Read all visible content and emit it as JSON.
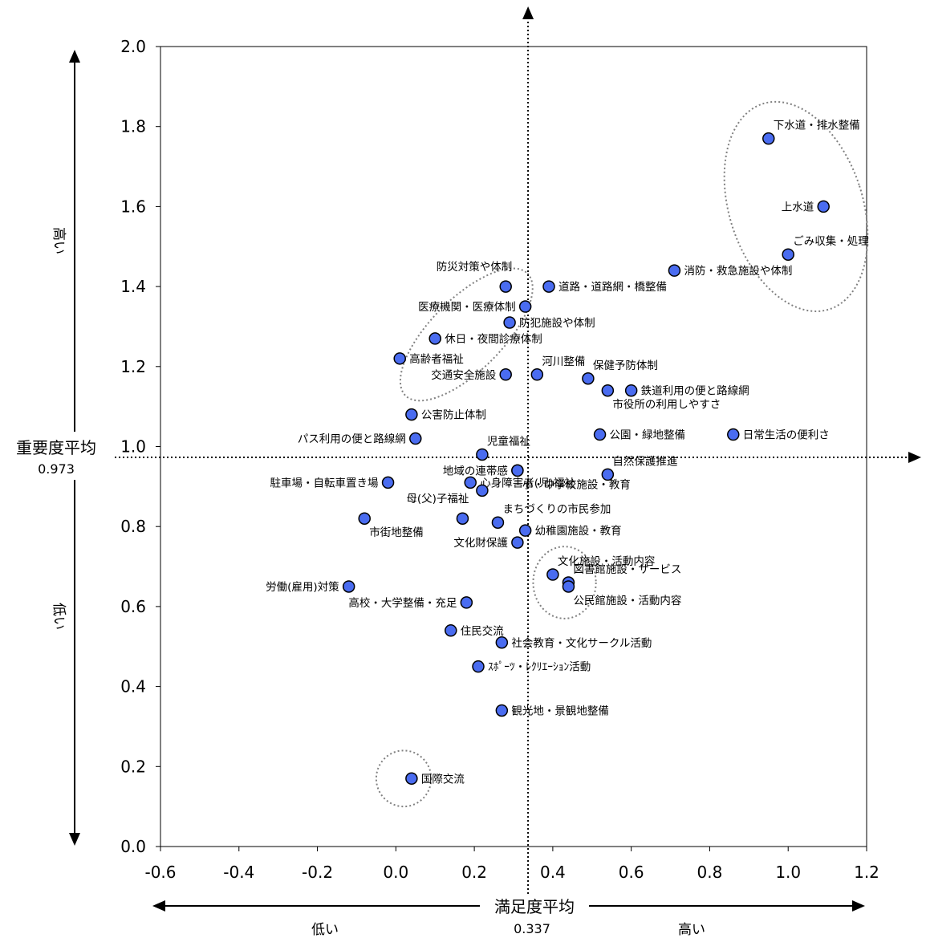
{
  "chart_data": {
    "type": "scatter",
    "xlim": [
      -0.6,
      1.2
    ],
    "ylim": [
      0.0,
      2.0
    ],
    "x_ticks": [
      "-0.6",
      "-0.4",
      "-0.2",
      "0.0",
      "0.2",
      "0.4",
      "0.6",
      "0.8",
      "1.0",
      "1.2"
    ],
    "y_ticks": [
      "0.0",
      "0.2",
      "0.4",
      "0.6",
      "0.8",
      "1.0",
      "1.2",
      "1.4",
      "1.6",
      "1.8",
      "2.0"
    ],
    "x_axis": {
      "title": "満足度平均",
      "mean": 0.337,
      "mean_label": "0.337",
      "low_label": "低い",
      "high_label": "高い"
    },
    "y_axis": {
      "title": "重要度平均",
      "mean": 0.973,
      "mean_label": "0.973",
      "low_label": "低い",
      "high_label": "高い"
    },
    "point_color": "#4a6cf0",
    "points": [
      {
        "label": "下水道・排水整備",
        "x": 0.95,
        "y": 1.77,
        "pos": "above-right"
      },
      {
        "label": "上水道",
        "x": 1.09,
        "y": 1.6,
        "pos": "left"
      },
      {
        "label": "ごみ収集・処理",
        "x": 1.0,
        "y": 1.48,
        "pos": "above-right"
      },
      {
        "label": "消防・救急施設や体制",
        "x": 0.71,
        "y": 1.44,
        "pos": "right"
      },
      {
        "label": "防災対策や体制",
        "x": 0.28,
        "y": 1.4,
        "pos": "above-left"
      },
      {
        "label": "道路・道路網・橋整備",
        "x": 0.39,
        "y": 1.4,
        "pos": "right"
      },
      {
        "label": "医療機関・医療体制",
        "x": 0.33,
        "y": 1.35,
        "pos": "left"
      },
      {
        "label": "防犯施設や体制",
        "x": 0.29,
        "y": 1.31,
        "pos": "right"
      },
      {
        "label": "休日・夜間診療体制",
        "x": 0.1,
        "y": 1.27,
        "pos": "right"
      },
      {
        "label": "高齢者福祉",
        "x": 0.01,
        "y": 1.22,
        "pos": "right"
      },
      {
        "label": "河川整備",
        "x": 0.36,
        "y": 1.18,
        "pos": "above-right"
      },
      {
        "label": "交通安全施設",
        "x": 0.28,
        "y": 1.18,
        "pos": "left"
      },
      {
        "label": "保健予防体制",
        "x": 0.49,
        "y": 1.17,
        "pos": "above-right"
      },
      {
        "label": "鉄道利用の便と路線網",
        "x": 0.6,
        "y": 1.14,
        "pos": "right"
      },
      {
        "label": "市役所の利用しやすさ",
        "x": 0.54,
        "y": 1.14,
        "pos": "below-right"
      },
      {
        "label": "公害防止体制",
        "x": 0.04,
        "y": 1.08,
        "pos": "right"
      },
      {
        "label": "パス利用の便と路線網",
        "x": 0.05,
        "y": 1.02,
        "pos": "left"
      },
      {
        "label": "公園・緑地整備",
        "x": 0.52,
        "y": 1.03,
        "pos": "right"
      },
      {
        "label": "日常生活の便利さ",
        "x": 0.86,
        "y": 1.03,
        "pos": "right"
      },
      {
        "label": "児童福祉",
        "x": 0.22,
        "y": 0.98,
        "pos": "above-right"
      },
      {
        "label": "地域の連帯感",
        "x": 0.31,
        "y": 0.94,
        "pos": "left"
      },
      {
        "label": "自然保護推進",
        "x": 0.54,
        "y": 0.93,
        "pos": "above-right"
      },
      {
        "label": "小・中学校施設・教育",
        "x": 0.31,
        "y": 0.94,
        "pos": "below-right"
      },
      {
        "label": "駐車場・自転車置き場",
        "x": -0.02,
        "y": 0.91,
        "pos": "left"
      },
      {
        "label": "心身障害者(児)福祉",
        "x": 0.19,
        "y": 0.91,
        "pos": "right"
      },
      {
        "label": "心身障害者(児)福祉",
        "x": 0.22,
        "y": 0.89,
        "pos": "right",
        "hide_label": true
      },
      {
        "label": "母(父)子福祉",
        "x": 0.17,
        "y": 0.82,
        "pos": "above-left"
      },
      {
        "label": "市街地整備",
        "x": -0.08,
        "y": 0.82,
        "pos": "below-right"
      },
      {
        "label": "まちづくりの市民参加",
        "x": 0.26,
        "y": 0.81,
        "pos": "above-right"
      },
      {
        "label": "幼稚園施設・教育",
        "x": 0.33,
        "y": 0.79,
        "pos": "right"
      },
      {
        "label": "文化財保護",
        "x": 0.31,
        "y": 0.76,
        "pos": "left"
      },
      {
        "label": "文化施設・活動内容",
        "x": 0.4,
        "y": 0.68,
        "pos": "above-right"
      },
      {
        "label": "図書館施設・サービス",
        "x": 0.44,
        "y": 0.66,
        "pos": "above-right"
      },
      {
        "label": "公民館施設・活動内容",
        "x": 0.44,
        "y": 0.65,
        "pos": "below-right"
      },
      {
        "label": "労働(雇用)対策",
        "x": -0.12,
        "y": 0.65,
        "pos": "left"
      },
      {
        "label": "高校・大学整備・充足",
        "x": 0.18,
        "y": 0.61,
        "pos": "left"
      },
      {
        "label": "住民交流",
        "x": 0.14,
        "y": 0.54,
        "pos": "right"
      },
      {
        "label": "社会教育・文化サークル活動",
        "x": 0.27,
        "y": 0.51,
        "pos": "right"
      },
      {
        "label": "ｽﾎﾟｰﾂ・ﾚｸﾘｴｰｼｮﾝ活動",
        "x": 0.21,
        "y": 0.45,
        "pos": "right"
      },
      {
        "label": "観光地・景観地整備",
        "x": 0.27,
        "y": 0.34,
        "pos": "right"
      },
      {
        "label": "国際交流",
        "x": 0.04,
        "y": 0.17,
        "pos": "right"
      }
    ],
    "groups": [
      {
        "name": "top-right",
        "cx": 1.02,
        "cy": 1.6,
        "rx": 0.17,
        "ry": 0.27,
        "rot": -18
      },
      {
        "name": "mid-left",
        "cx": 0.18,
        "cy": 1.28,
        "rx": 0.22,
        "ry": 0.09,
        "rot": -45
      },
      {
        "name": "culture",
        "cx": 0.43,
        "cy": 0.66,
        "rx": 0.08,
        "ry": 0.09,
        "rot": 0
      },
      {
        "name": "intl",
        "cx": 0.02,
        "cy": 0.17,
        "rx": 0.07,
        "ry": 0.07,
        "rot": 0
      }
    ]
  }
}
